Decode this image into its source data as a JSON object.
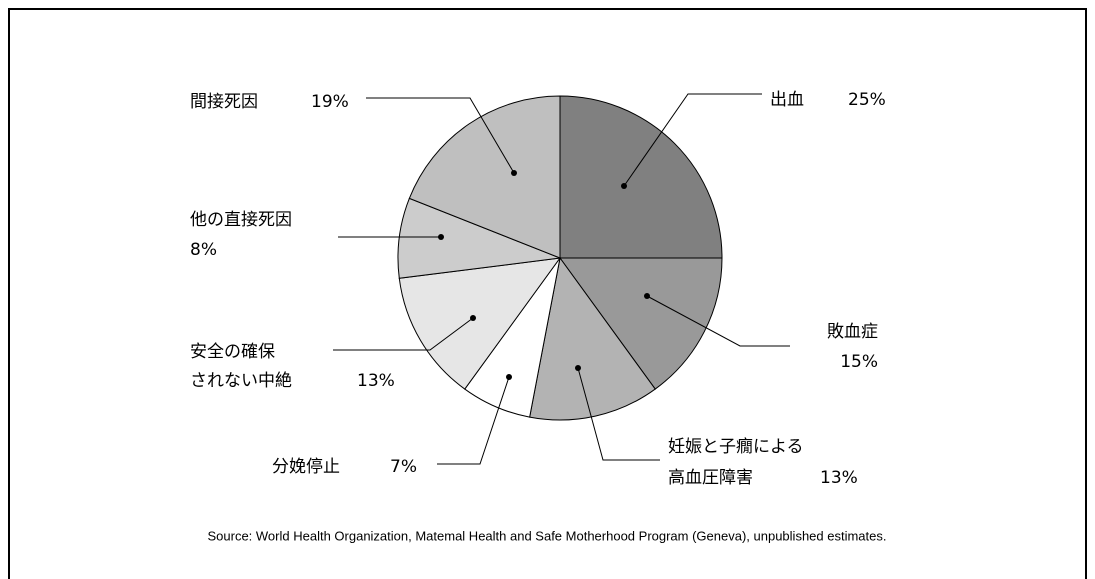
{
  "chart_data": {
    "type": "pie",
    "categories": [
      [
        "出血"
      ],
      [
        "敗血症"
      ],
      [
        "妊娠と子癇による",
        "高血圧障害"
      ],
      [
        "分娩停止"
      ],
      [
        "安全の確保",
        "されない中絶"
      ],
      [
        "他の直接死因"
      ],
      [
        "間接死因"
      ]
    ],
    "values": [
      25,
      15,
      13,
      7,
      13,
      8,
      19
    ],
    "value_labels": [
      "25%",
      "15%",
      "13%",
      "7%",
      "13%",
      "8%",
      "19%"
    ],
    "colors": [
      "#808080",
      "#999999",
      "#b3b3b3",
      "#ffffff",
      "#e6e6e6",
      "#cccccc",
      "#bfbfbf"
    ],
    "source": "Source: World Health Organization, Matemal Health and Safe Motherhood Program (Geneva), unpublished estimates."
  }
}
